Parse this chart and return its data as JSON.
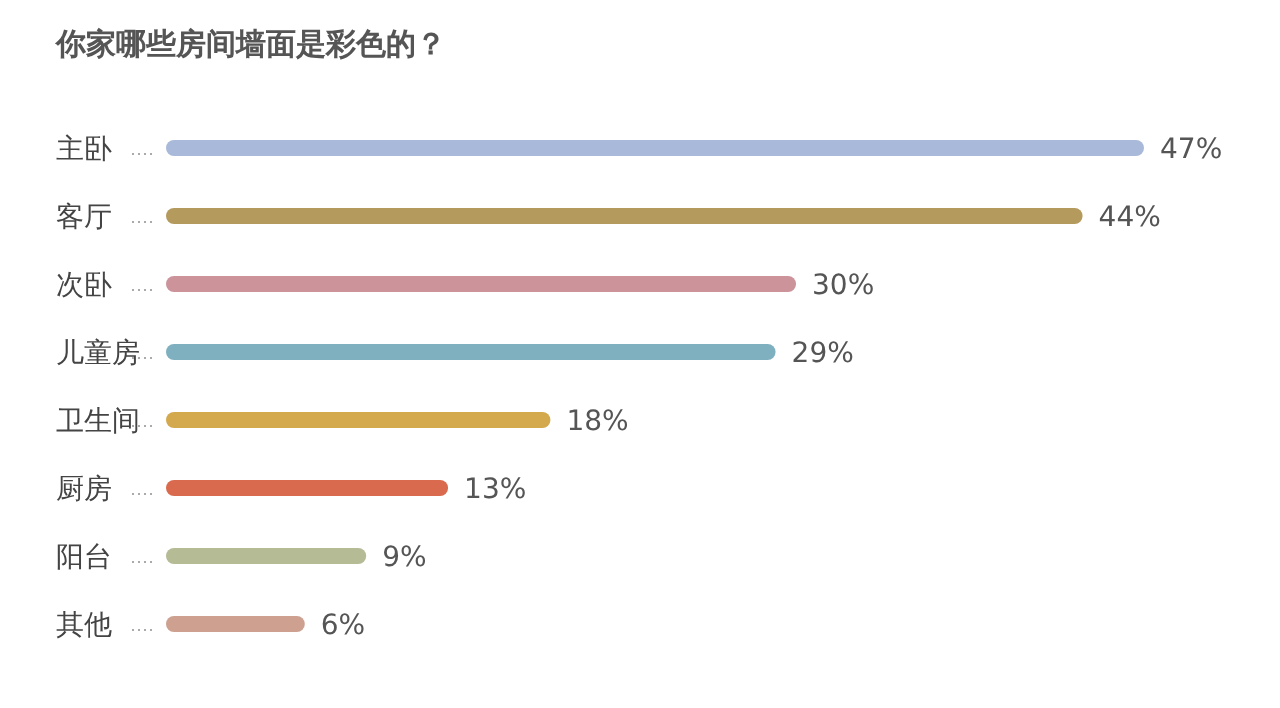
{
  "chart_data": {
    "type": "bar",
    "orientation": "horizontal",
    "title": "你家哪些房间墙面是彩色的？",
    "categories": [
      "主卧",
      "客厅",
      "次卧",
      "儿童房",
      "卫生间",
      "厨房",
      "阳台",
      "其他"
    ],
    "values": [
      47,
      44,
      30,
      29,
      18,
      13,
      9,
      6
    ],
    "value_labels": [
      "47%",
      "44%",
      "30%",
      "29%",
      "18%",
      "13%",
      "9%",
      "6%"
    ],
    "colors": [
      "#a9b9d9",
      "#b59a5e",
      "#cc939b",
      "#7fb0bf",
      "#d4a84d",
      "#d96a4e",
      "#b5bb95",
      "#cda090"
    ]
  }
}
